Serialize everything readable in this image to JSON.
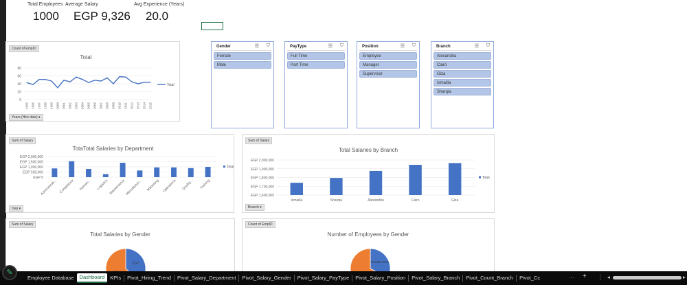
{
  "kpis": [
    {
      "label": "Total Employees",
      "value": "1000"
    },
    {
      "label": "Average Salary",
      "value": "EGP 9,326"
    },
    {
      "label": "Avg Experience (Years)",
      "value": "20.0"
    }
  ],
  "hiring_chart": {
    "field_button": "Count of EmpID",
    "axis_button": "Years (Hire date)",
    "chart_data": {
      "type": "line",
      "title": "Total",
      "x": [
        "1995",
        "1996",
        "1997",
        "1998",
        "1999",
        "2000",
        "2001",
        "2002",
        "2003",
        "2004",
        "2005",
        "2006",
        "2007",
        "2008",
        "2009",
        "2010",
        "2011",
        "2012",
        "2013",
        "2014",
        "2015"
      ],
      "series": [
        {
          "name": "Total",
          "values": [
            43,
            38,
            51,
            51,
            47,
            30,
            49,
            45,
            57,
            51,
            43,
            49,
            47,
            55,
            40,
            58,
            57,
            45,
            40,
            44,
            44
          ]
        }
      ],
      "yticks": [
        "0",
        "20",
        "40",
        "60",
        "80"
      ],
      "ylim": [
        0,
        80
      ],
      "legend": "right",
      "grid": true,
      "color": "#4472c4"
    }
  },
  "slicers": [
    {
      "title": "Gender",
      "items": [
        "Female",
        "Male"
      ]
    },
    {
      "title": "PayType",
      "items": [
        "Full Time",
        "Part Time"
      ]
    },
    {
      "title": "Position",
      "items": [
        "Employee",
        "Manager",
        "Supervisor"
      ]
    },
    {
      "title": "Branch",
      "items": [
        "Alexandria",
        "Cairo",
        "Giza",
        "Ismailia",
        "Sharqia"
      ]
    }
  ],
  "dept_chart": {
    "field_button": "Sum of Salary",
    "axis_button": "Dep",
    "chart_data": {
      "type": "bar",
      "title": "TotaTotal Salaries by Department",
      "categories": [
        "Administrati...",
        "Compliance",
        "Human...",
        "Logistics",
        "Maintenance",
        "Manufacturi...",
        "Marketing",
        "Operations",
        "Quality...",
        "Training"
      ],
      "series": [
        {
          "name": "Total",
          "values": [
            850000,
            1550000,
            800000,
            300000,
            1400000,
            650000,
            950000,
            950000,
            880000,
            1000000
          ]
        }
      ],
      "yticks": [
        "EGP 0",
        "EGP 500,000",
        "EGP 1,000,000",
        "EGP 1,500,000",
        "EGP 2,000,000"
      ],
      "ylim": [
        0,
        2000000
      ],
      "legend": "right",
      "grid": true,
      "color": "#4472c4"
    }
  },
  "branch_chart": {
    "field_button": "Sum of Salary",
    "axis_button": "Branch",
    "chart_data": {
      "type": "bar",
      "title": "Total Salaries by Branch",
      "categories": [
        "Ismailia",
        "Sharqia",
        "Alexandria",
        "Cairo",
        "Giza"
      ],
      "series": [
        {
          "name": "Total",
          "values": [
            1740000,
            1795000,
            1875000,
            1945000,
            1965000
          ]
        }
      ],
      "yticks": [
        "EGP 1,600,000",
        "EGP 1,700,000",
        "EGP 1,800,000",
        "EGP 1,900,000",
        "EGP 2,000,000"
      ],
      "ylim": [
        1600000,
        2000000
      ],
      "legend": "right",
      "grid": true,
      "color": "#4472c4"
    }
  },
  "gender_salary_chart": {
    "field_button": "Sum of Salary",
    "chart_data": {
      "type": "pie",
      "title": "Total Salaries by Gender",
      "categories": [
        "Female",
        "Male"
      ],
      "share": [
        0.37,
        0.63
      ],
      "labels": [
        "EGP",
        "EGP"
      ],
      "colors": [
        "#4472c4",
        "#ed7d31"
      ]
    }
  },
  "gender_count_chart": {
    "field_button": "Count of EmpID",
    "chart_data": {
      "type": "pie",
      "title": "Number of Employees by Gender",
      "categories": [
        "Female",
        "Male"
      ],
      "share": [
        0.33,
        0.67
      ],
      "labels": [
        "Female; 33%",
        "Male; 67%"
      ],
      "colors": [
        "#4472c4",
        "#ed7d31"
      ]
    }
  },
  "tabs": [
    "Employee Database",
    "Dashboard",
    "KPIs",
    "Pivot_Hiring_Trend",
    "Pivot_Salary_Department",
    "Pivot_Salary_Gender",
    "Pivot_Salary_PayType",
    "Pivot_Salary_Position",
    "Pivot_Salary_Branch",
    "Pivot_Count_Branch",
    "Pivot_Cc"
  ],
  "active_tab": "Dashboard",
  "tab_controls": {
    "more": "···",
    "add": "+",
    "options": "⋮"
  }
}
